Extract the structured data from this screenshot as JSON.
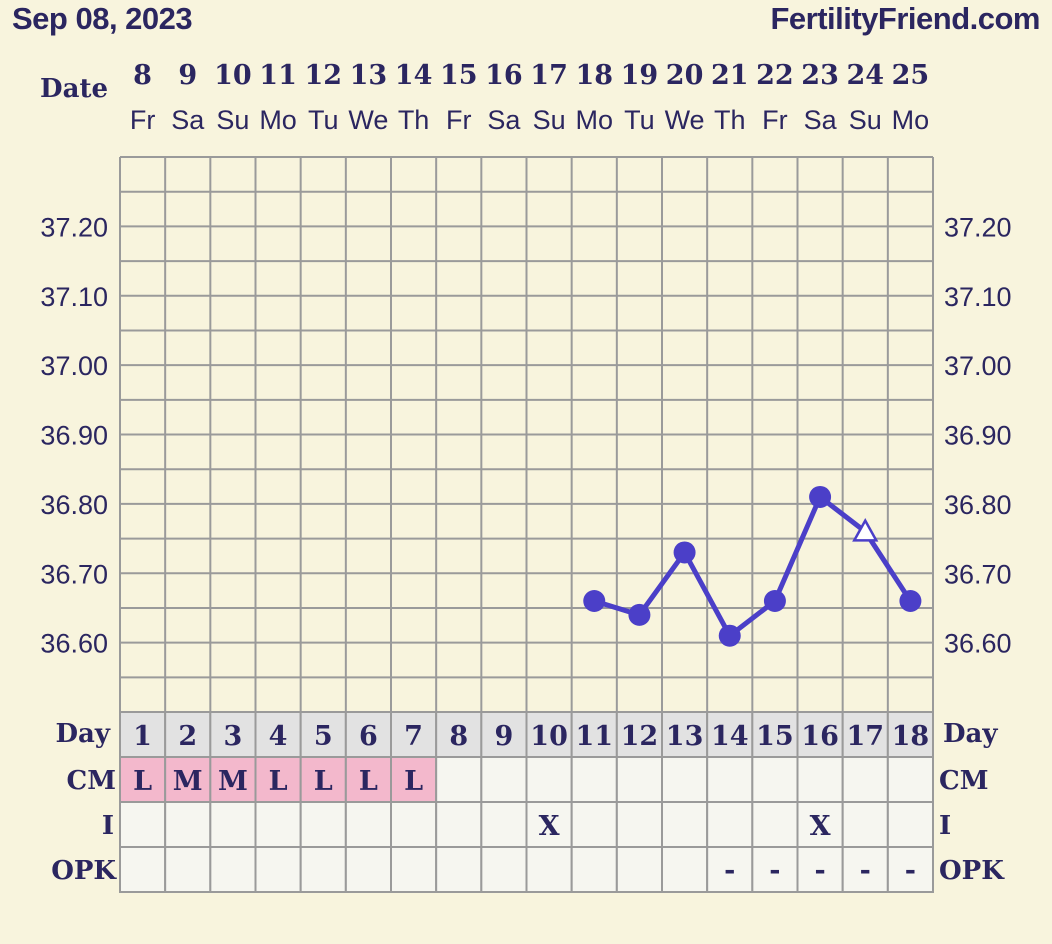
{
  "header": {
    "date": "Sep 08, 2023",
    "site": "FertilityFriend.com"
  },
  "labels": {
    "date_row": "Date",
    "day_row": "Day",
    "cm_row": "CM",
    "i_row": "I",
    "opk_row": "OPK"
  },
  "colors": {
    "background": "#f8f4dd",
    "grid": "#9a9a9a",
    "text": "#2b2660",
    "line": "#4b3fc8",
    "cm_fill": "#f3b8cc",
    "day_fill": "#e2e2e2",
    "cell_fill": "#f6f6f0"
  },
  "chart_data": {
    "type": "line",
    "x_dates": [
      "8",
      "9",
      "10",
      "11",
      "12",
      "13",
      "14",
      "15",
      "16",
      "17",
      "18",
      "19",
      "20",
      "21",
      "22",
      "23",
      "24",
      "25"
    ],
    "x_weekdays": [
      "Fr",
      "Sa",
      "Su",
      "Mo",
      "Tu",
      "We",
      "Th",
      "Fr",
      "Sa",
      "Su",
      "Mo",
      "Tu",
      "We",
      "Th",
      "Fr",
      "Sa",
      "Su",
      "Mo"
    ],
    "cycle_days": [
      "1",
      "2",
      "3",
      "4",
      "5",
      "6",
      "7",
      "8",
      "9",
      "10",
      "11",
      "12",
      "13",
      "14",
      "15",
      "16",
      "17",
      "18"
    ],
    "y_ticks": [
      "36.60",
      "36.70",
      "36.80",
      "36.90",
      "37.00",
      "37.10",
      "37.20"
    ],
    "ylim": [
      36.5,
      37.3
    ],
    "temperatures": [
      null,
      null,
      null,
      null,
      null,
      null,
      null,
      null,
      null,
      null,
      36.66,
      36.64,
      36.73,
      36.61,
      36.66,
      36.81,
      36.76,
      36.66
    ],
    "markers": [
      "",
      "",
      "",
      "",
      "",
      "",
      "",
      "",
      "",
      "",
      "circle",
      "circle",
      "circle",
      "circle",
      "circle",
      "circle",
      "open-triangle",
      "circle"
    ],
    "cm": [
      "L",
      "M",
      "M",
      "L",
      "L",
      "L",
      "L",
      "",
      "",
      "",
      "",
      "",
      "",
      "",
      "",
      "",
      "",
      ""
    ],
    "intercourse": [
      "",
      "",
      "",
      "",
      "",
      "",
      "",
      "",
      "",
      "X",
      "",
      "",
      "",
      "",
      "",
      "X",
      "",
      ""
    ],
    "opk": [
      "",
      "",
      "",
      "",
      "",
      "",
      "",
      "",
      "",
      "",
      "",
      "",
      "",
      "-",
      "-",
      "-",
      "-",
      "-"
    ]
  }
}
